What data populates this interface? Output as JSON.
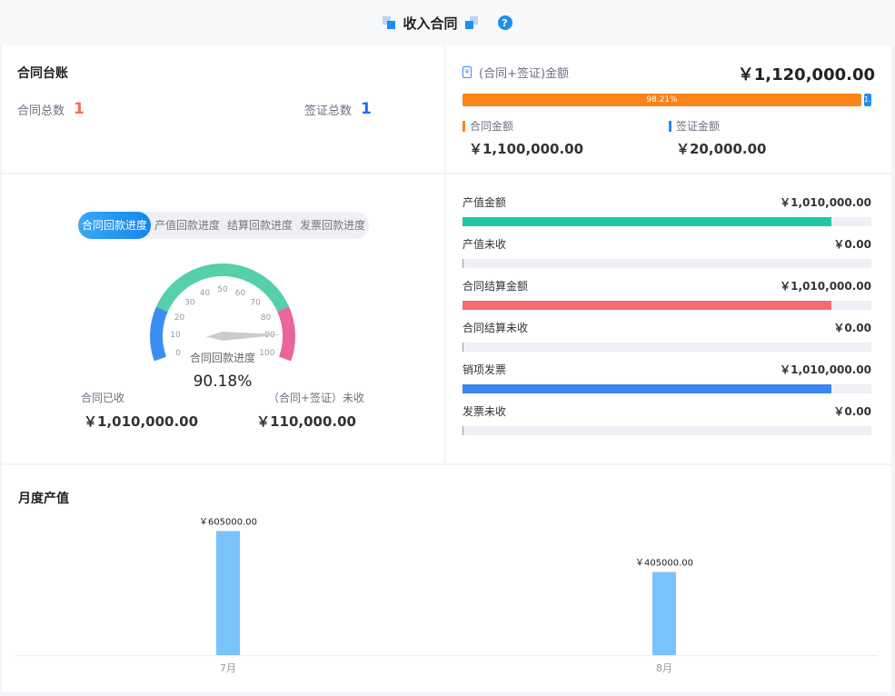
{
  "header": {
    "title": "收入合同",
    "help_icon": "question-circle-icon"
  },
  "ledger": {
    "title": "合同台账",
    "contract_total_label": "合同总数",
    "contract_total": "1",
    "visa_total_label": "签证总数",
    "visa_total": "1"
  },
  "amount": {
    "label": "(合同+签证)金额",
    "total": "￥1,120,000.00",
    "contract_pct": 98.21,
    "contract_pct_label": "98.21%",
    "visa_pct_label": "1.",
    "contract_label": "合同金额",
    "contract_value": "￥1,100,000.00",
    "visa_label": "签证金额",
    "visa_value": "￥20,000.00",
    "colors": {
      "contract": "#fa8419",
      "visa": "#1e8ef0"
    }
  },
  "progress": {
    "tabs": [
      "合同回款进度",
      "产值回款进度",
      "结算回款进度",
      "发票回款进度"
    ],
    "active_tab": 0,
    "gauge": {
      "name": "合同回款进度",
      "value": 90.18,
      "value_label": "90.18%",
      "ticks": [
        "0",
        "10",
        "20",
        "30",
        "40",
        "50",
        "60",
        "70",
        "80",
        "90",
        "100"
      ],
      "colors": [
        "#3b8ef0",
        "#56cfaa",
        "#e9669a"
      ]
    },
    "received_label": "合同已收",
    "received_value": "￥1,010,000.00",
    "unreceived_label": "（合同+签证）未收",
    "unreceived_value": "￥110,000.00"
  },
  "bars": [
    {
      "label": "产值金额",
      "value": "￥1,010,000.00",
      "pct": 90.2,
      "color": "#1ec8a5"
    },
    {
      "label": "产值未收",
      "value": "￥0.00",
      "pct": 0,
      "color": "#999"
    },
    {
      "label": "合同结算金额",
      "value": "￥1,010,000.00",
      "pct": 90.2,
      "color": "#f36b73"
    },
    {
      "label": "合同结算未收",
      "value": "￥0.00",
      "pct": 0,
      "color": "#999"
    },
    {
      "label": "销项发票",
      "value": "￥1,010,000.00",
      "pct": 90.2,
      "color": "#3b86ee"
    },
    {
      "label": "发票未收",
      "value": "￥0.00",
      "pct": 0,
      "color": "#999"
    }
  ],
  "monthly": {
    "title": "月度产值"
  },
  "chart_data": {
    "type": "bar",
    "categories": [
      "7月",
      "8月"
    ],
    "values": [
      605000,
      405000
    ],
    "data_labels": [
      "￥605000.00",
      "￥405000.00"
    ],
    "ylim": [
      0,
      700000
    ],
    "color": "#78c3fc",
    "grid": false
  }
}
